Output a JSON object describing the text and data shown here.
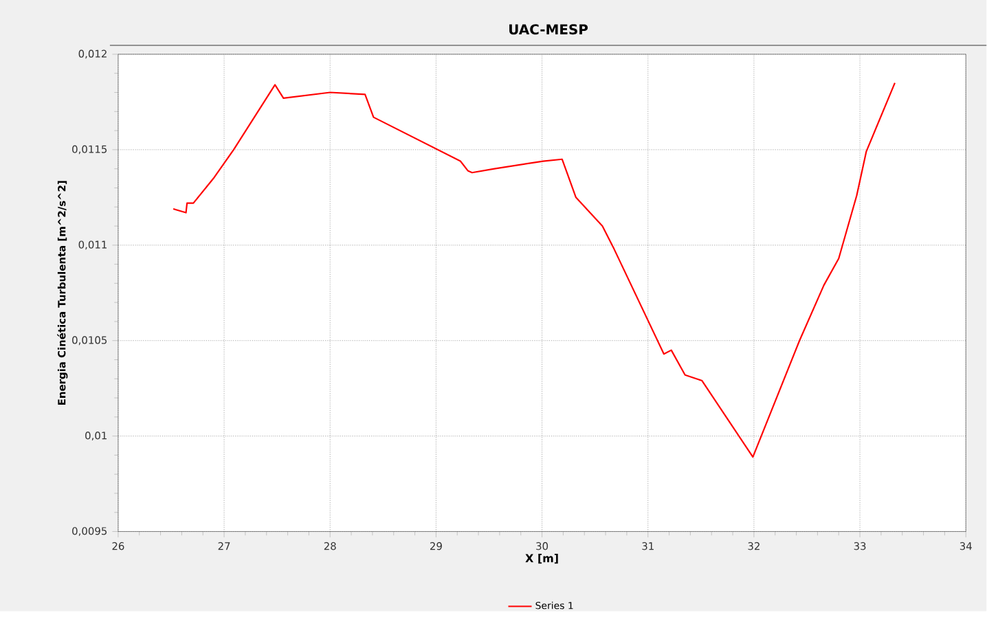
{
  "chart_data": {
    "type": "line",
    "title": "UAC-MESP",
    "xlabel": "X [m]",
    "ylabel": "Energia Cinética Turbulenta [m^2/s^2]",
    "xlim": [
      26,
      34
    ],
    "xticks": [
      26,
      27,
      28,
      29,
      30,
      31,
      32,
      33,
      34
    ],
    "ylim": [
      0.0095,
      0.012
    ],
    "yticks": [
      {
        "value": 0.0095,
        "label": "0,0095"
      },
      {
        "value": 0.01,
        "label": "0,01"
      },
      {
        "value": 0.0105,
        "label": "0,0105"
      },
      {
        "value": 0.011,
        "label": "0,011"
      },
      {
        "value": 0.0115,
        "label": "0,0115"
      },
      {
        "value": 0.012,
        "label": "0,012"
      }
    ],
    "grid": true,
    "legend": "bottom",
    "line_style": "solid",
    "series": [
      {
        "name": "Series 1",
        "color": "#ff0000",
        "x": [
          26.52,
          26.64,
          26.65,
          26.71,
          26.9,
          27.09,
          27.48,
          27.56,
          28.0,
          28.33,
          28.41,
          29.23,
          29.3,
          29.34,
          29.55,
          30.01,
          30.19,
          30.32,
          30.57,
          30.68,
          31.15,
          31.22,
          31.35,
          31.51,
          31.99,
          32.43,
          32.66,
          32.8,
          32.97,
          33.06,
          33.33
        ],
        "values": [
          0.01119,
          0.01117,
          0.01122,
          0.01122,
          0.01135,
          0.0115,
          0.01184,
          0.01177,
          0.0118,
          0.01179,
          0.01167,
          0.01144,
          0.01139,
          0.01138,
          0.0114,
          0.01144,
          0.01145,
          0.01125,
          0.0111,
          0.01098,
          0.01043,
          0.01045,
          0.01032,
          0.01029,
          0.00989,
          0.0105,
          0.01079,
          0.01093,
          0.01126,
          0.01149,
          0.01185
        ]
      }
    ]
  }
}
